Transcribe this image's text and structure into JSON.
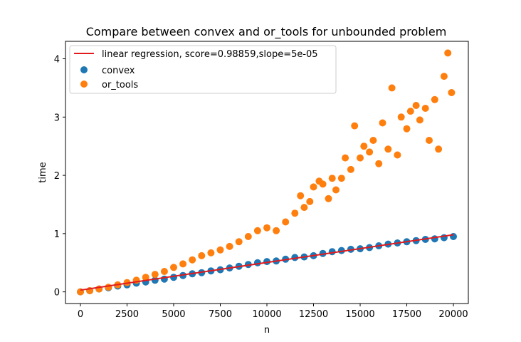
{
  "chart_data": {
    "type": "scatter",
    "title": "Compare between convex and or_tools for unbounded problem",
    "xlabel": "n",
    "ylabel": "time",
    "xlim": [
      -800,
      20800
    ],
    "ylim": [
      -0.2,
      4.3
    ],
    "xticks": [
      0,
      2500,
      5000,
      7500,
      10000,
      12500,
      15000,
      17500,
      20000
    ],
    "yticks": [
      0,
      1,
      2,
      3,
      4
    ],
    "grid": false,
    "legend_position": "upper-left",
    "colors": {
      "convex": "#1f77b4",
      "or_tools": "#ff7f0e",
      "regression": "#e31a1c"
    },
    "regression": {
      "label": "linear regression, score=0.98859,slope=5e-05",
      "x": [
        0,
        20000
      ],
      "y": [
        0.03,
        0.98
      ]
    },
    "series": [
      {
        "name": "convex",
        "x": [
          0,
          500,
          1000,
          1500,
          2000,
          2500,
          3000,
          3500,
          4000,
          4500,
          5000,
          5500,
          6000,
          6500,
          7000,
          7500,
          8000,
          8500,
          9000,
          9500,
          10000,
          10500,
          11000,
          11500,
          12000,
          12500,
          13000,
          13500,
          14000,
          14500,
          15000,
          15500,
          16000,
          16500,
          17000,
          17500,
          18000,
          18500,
          19000,
          19500,
          20000
        ],
        "y": [
          0.0,
          0.02,
          0.05,
          0.07,
          0.1,
          0.12,
          0.15,
          0.17,
          0.2,
          0.22,
          0.25,
          0.28,
          0.31,
          0.33,
          0.36,
          0.38,
          0.41,
          0.44,
          0.47,
          0.5,
          0.52,
          0.53,
          0.56,
          0.59,
          0.6,
          0.62,
          0.66,
          0.69,
          0.71,
          0.73,
          0.74,
          0.76,
          0.79,
          0.82,
          0.84,
          0.86,
          0.88,
          0.9,
          0.91,
          0.93,
          0.95
        ]
      },
      {
        "name": "or_tools",
        "x": [
          0,
          500,
          1000,
          1500,
          2000,
          2500,
          3000,
          3500,
          4000,
          4500,
          5000,
          5500,
          6000,
          6500,
          7000,
          7500,
          8000,
          8500,
          9000,
          9500,
          10000,
          10500,
          11000,
          11500,
          11800,
          12000,
          12300,
          12500,
          12800,
          13000,
          13300,
          13500,
          13700,
          14000,
          14200,
          14500,
          14700,
          15000,
          15200,
          15500,
          15700,
          16000,
          16200,
          16500,
          16700,
          17000,
          17200,
          17500,
          17700,
          18000,
          18200,
          18500,
          18700,
          19000,
          19200,
          19500,
          19700,
          19900
        ],
        "y": [
          0.0,
          0.02,
          0.05,
          0.08,
          0.12,
          0.16,
          0.2,
          0.25,
          0.3,
          0.35,
          0.42,
          0.48,
          0.55,
          0.62,
          0.67,
          0.72,
          0.78,
          0.86,
          0.95,
          1.05,
          1.1,
          1.05,
          1.2,
          1.35,
          1.65,
          1.45,
          1.55,
          1.8,
          1.9,
          1.85,
          1.6,
          1.95,
          1.75,
          1.95,
          2.3,
          2.1,
          2.85,
          2.3,
          2.5,
          2.4,
          2.6,
          2.2,
          2.9,
          2.45,
          3.5,
          2.35,
          3.0,
          2.8,
          3.1,
          3.2,
          2.95,
          3.15,
          2.6,
          3.3,
          2.45,
          3.7,
          4.1,
          3.42
        ]
      }
    ]
  }
}
